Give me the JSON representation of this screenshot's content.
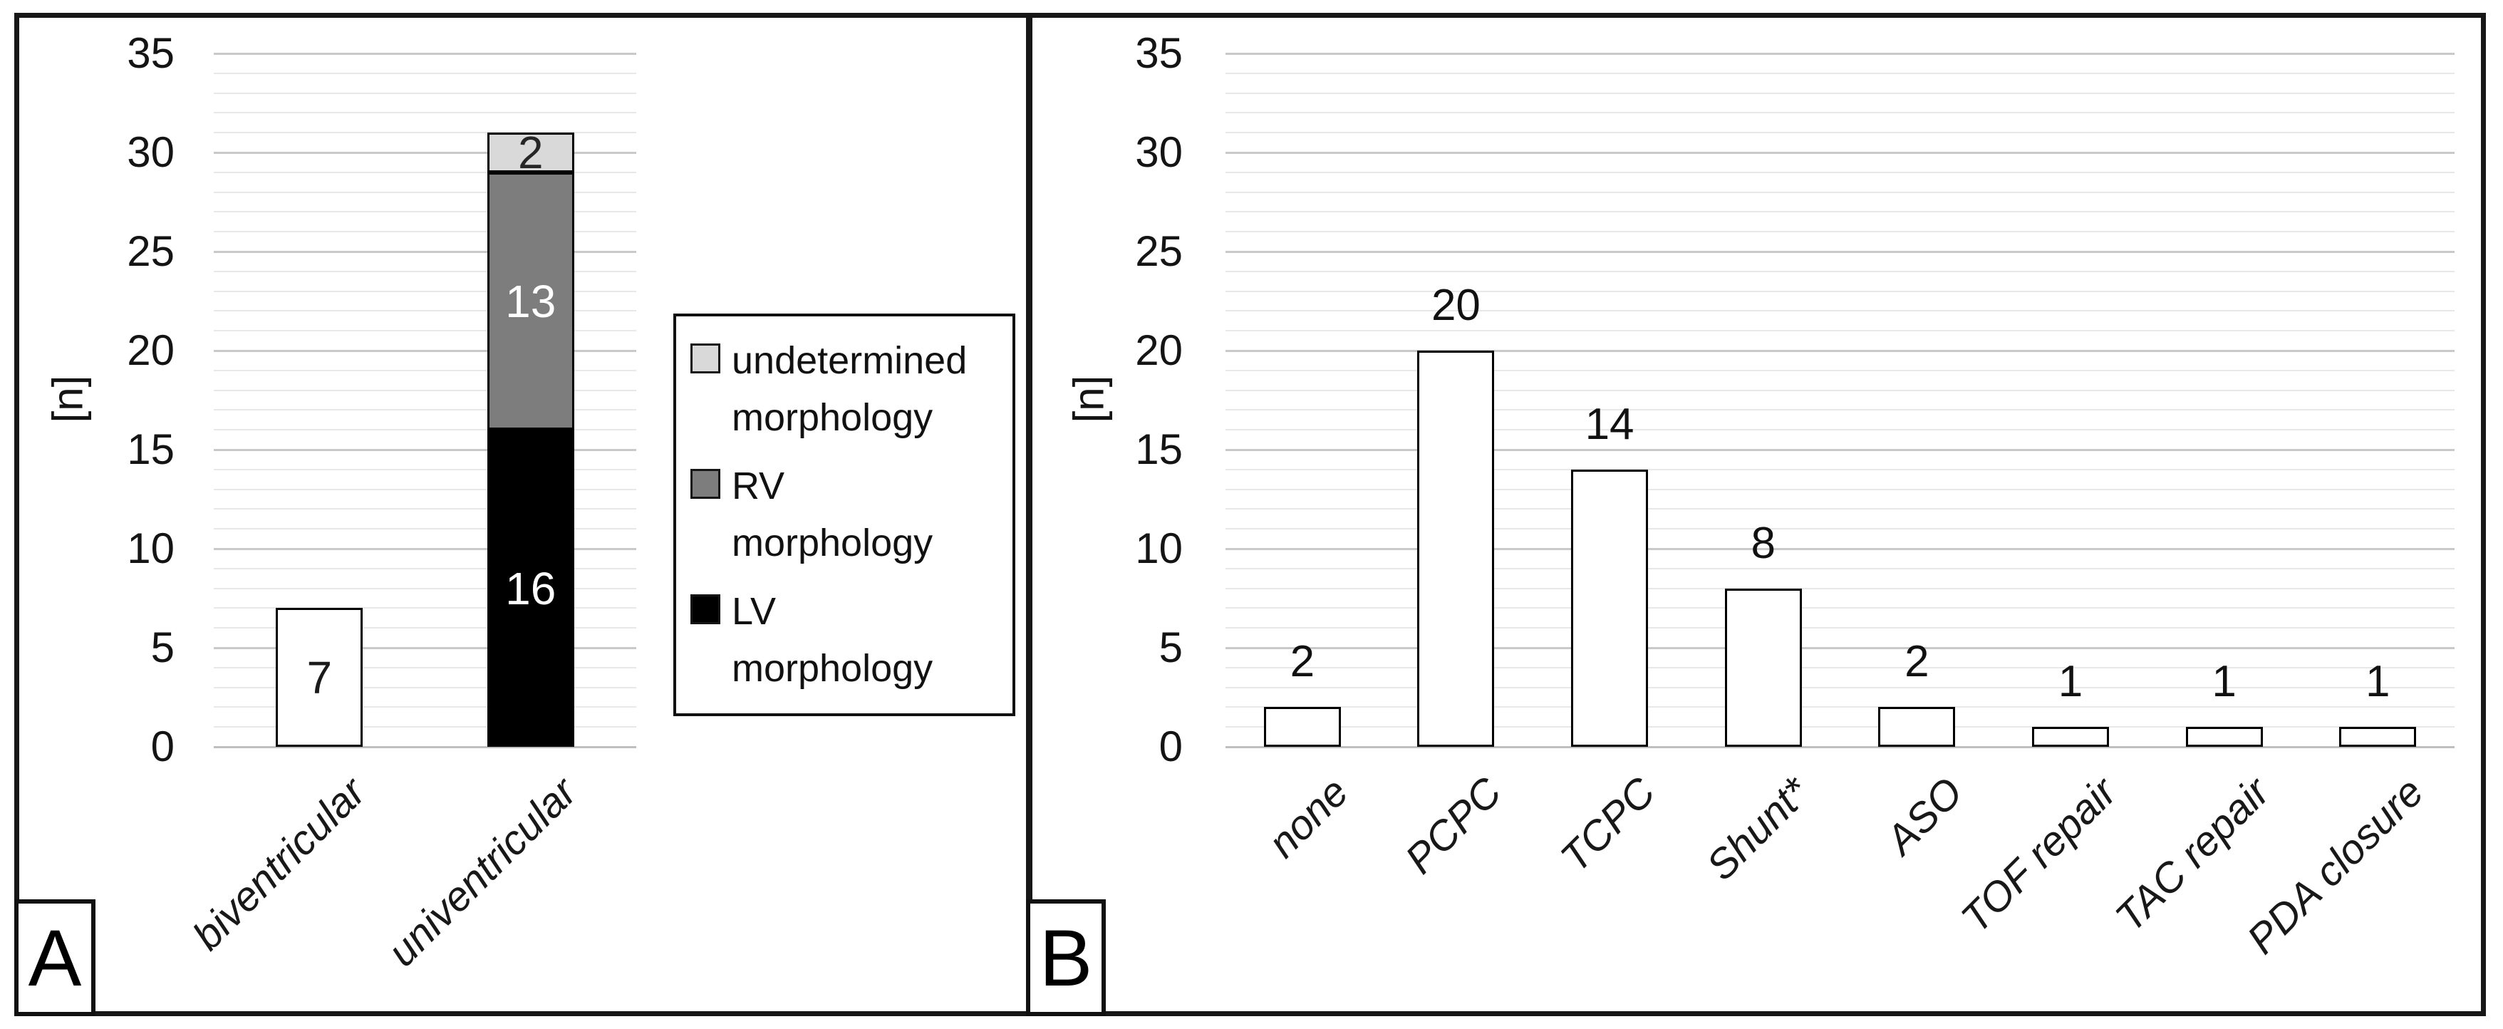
{
  "figure": {
    "background": "#ffffff",
    "frame_color": "#171717",
    "text_color": "#141414",
    "grid_minor_color": "#e8e8e8",
    "grid_major_color": "#c9c9c9"
  },
  "chart_data": [
    {
      "panel_label": "A",
      "type": "stacked-bar",
      "title": "",
      "xlabel": "",
      "ylabel": "[n]",
      "ylim": [
        0,
        35
      ],
      "ytick_interval": 5,
      "yticks": [
        "0",
        "5",
        "10",
        "15",
        "20",
        "25",
        "30",
        "35"
      ],
      "minor_grid_interval": 1,
      "grid": true,
      "categories": [
        "biventricular",
        "univentricular"
      ],
      "bars": [
        {
          "category": "biventricular",
          "segments": [
            {
              "value": 7,
              "label": "7",
              "fill": "#ffffff",
              "label_color": "#1a1a1a"
            }
          ]
        },
        {
          "category": "univentricular",
          "segments": [
            {
              "value": 16,
              "label": "16",
              "series": "LV morphology",
              "fill": "#000000",
              "label_color": "#ffffff"
            },
            {
              "value": 13,
              "label": "13",
              "series": "RV morphology",
              "fill": "#7d7d7d",
              "label_color": "#ffffff"
            },
            {
              "value": 2,
              "label": "2",
              "series": "undetermined morphology",
              "fill": "#d9d9d9",
              "label_color": "#262626"
            }
          ]
        }
      ],
      "legend": {
        "position": "right",
        "items": [
          {
            "label": "undetermined morphology",
            "lines": [
              "undetermined",
              "morphology"
            ],
            "color": "#d9d9d9"
          },
          {
            "label": "RV morphology",
            "lines": [
              "RV",
              "morphology"
            ],
            "color": "#7d7d7d"
          },
          {
            "label": "LV morphology",
            "lines": [
              "LV",
              "morphology"
            ],
            "color": "#000000"
          }
        ]
      }
    },
    {
      "panel_label": "B",
      "type": "bar",
      "title": "",
      "xlabel": "",
      "ylabel": "[n]",
      "ylim": [
        0,
        35
      ],
      "ytick_interval": 5,
      "yticks": [
        "0",
        "5",
        "10",
        "15",
        "20",
        "25",
        "30",
        "35"
      ],
      "minor_grid_interval": 1,
      "grid": true,
      "categories": [
        "none",
        "PCPC",
        "TCPC",
        "Shunt*",
        "ASO",
        "TOF repair",
        "TAC repair",
        "PDA closure"
      ],
      "values": [
        2,
        20,
        14,
        8,
        2,
        1,
        1,
        1
      ],
      "value_labels": [
        "2",
        "20",
        "14",
        "8",
        "2",
        "1",
        "1",
        "1"
      ],
      "bar_fill": "#ffffff",
      "bar_border": "#000000"
    }
  ]
}
